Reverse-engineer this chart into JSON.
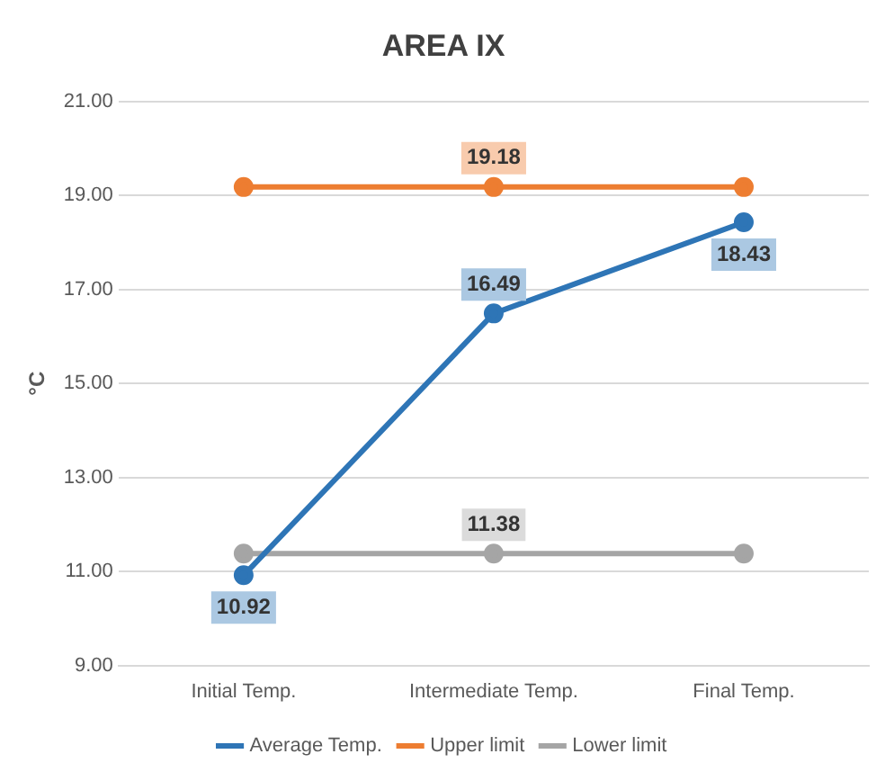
{
  "chart_data": {
    "type": "line",
    "title": "AREA IX",
    "ylabel": "°C",
    "categories": [
      "Initial Temp.",
      "Intermediate Temp.",
      "Final Temp."
    ],
    "series": [
      {
        "name": "Average Temp.",
        "color": "#2e75b6",
        "values": [
          10.92,
          16.49,
          18.43
        ],
        "value_labels": [
          "10.92",
          "16.49",
          "18.43"
        ]
      },
      {
        "name": "Upper limit",
        "color": "#ed7d31",
        "values": [
          19.18,
          19.18,
          19.18
        ],
        "value_labels": [
          null,
          "19.18",
          null
        ]
      },
      {
        "name": "Lower limit",
        "color": "#a5a5a5",
        "values": [
          11.38,
          11.38,
          11.38
        ],
        "value_labels": [
          null,
          "11.38",
          null
        ]
      }
    ],
    "ylim": [
      9,
      21
    ],
    "yticks": [
      {
        "value": 9,
        "label": "9.00"
      },
      {
        "value": 11,
        "label": "11.00"
      },
      {
        "value": 13,
        "label": "13.00"
      },
      {
        "value": 15,
        "label": "15.00"
      },
      {
        "value": 17,
        "label": "17.00"
      },
      {
        "value": 19,
        "label": "19.00"
      },
      {
        "value": 21,
        "label": "21.00"
      }
    ],
    "grid": "y",
    "legend": "bottom",
    "marker": "circle",
    "line_style": "solid"
  }
}
